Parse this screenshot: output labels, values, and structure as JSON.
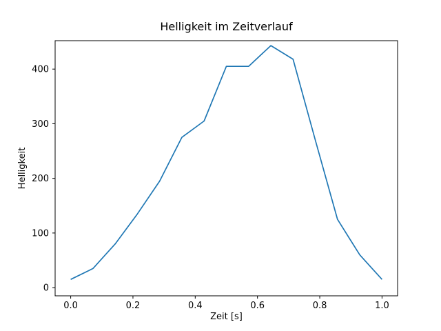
{
  "chart_data": {
    "type": "line",
    "title": "Helligkeit im Zeitverlauf",
    "xlabel": "Zeit [s]",
    "ylabel": "Helligkeit",
    "x": [
      0.0,
      0.0714,
      0.1429,
      0.2143,
      0.2857,
      0.3571,
      0.4286,
      0.5,
      0.5714,
      0.6429,
      0.7143,
      0.7857,
      0.8571,
      0.9286,
      1.0
    ],
    "y": [
      15,
      35,
      80,
      135,
      195,
      275,
      305,
      405,
      405,
      443,
      418,
      270,
      125,
      60,
      15
    ],
    "xlim": [
      -0.05,
      1.05
    ],
    "ylim": [
      -15,
      452
    ],
    "x_ticks": [
      0.0,
      0.2,
      0.4,
      0.6,
      0.8,
      1.0
    ],
    "x_tick_labels": [
      "0.0",
      "0.2",
      "0.4",
      "0.6",
      "0.8",
      "1.0"
    ],
    "y_ticks": [
      0,
      100,
      200,
      300,
      400
    ],
    "y_tick_labels": [
      "0",
      "100",
      "200",
      "300",
      "400"
    ],
    "line_color": "#1f77b4",
    "grid": false,
    "legend_position": "none"
  }
}
